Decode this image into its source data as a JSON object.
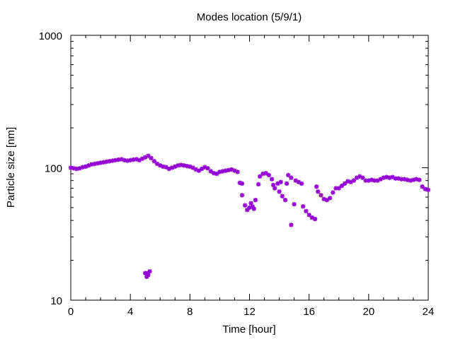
{
  "chart_data": {
    "type": "scatter",
    "title": "Modes location (5/9/1)",
    "xlabel": "Time [hour]",
    "ylabel": "Particle size [nm]",
    "xlim": [
      0,
      24
    ],
    "ylim": [
      10,
      1000
    ],
    "yscale": "log",
    "grid": false,
    "marker_color": "#9400d3",
    "marker_shape": "asterisk",
    "x_ticks": [
      0,
      4,
      8,
      12,
      16,
      20,
      24
    ],
    "x_tick_labels": [
      "0",
      "4",
      "8",
      "12",
      "16",
      "20",
      "24"
    ],
    "y_ticks": [
      10,
      100,
      1000
    ],
    "y_tick_labels": [
      "10",
      "100",
      "1000"
    ],
    "series": [
      {
        "points": [
          [
            0.0,
            100
          ],
          [
            0.2,
            99
          ],
          [
            0.4,
            98
          ],
          [
            0.6,
            99
          ],
          [
            0.8,
            101
          ],
          [
            1.0,
            102
          ],
          [
            1.2,
            104
          ],
          [
            1.4,
            106
          ],
          [
            1.6,
            107
          ],
          [
            1.8,
            108
          ],
          [
            2.0,
            109
          ],
          [
            2.2,
            110
          ],
          [
            2.4,
            111
          ],
          [
            2.6,
            112
          ],
          [
            2.8,
            113
          ],
          [
            3.0,
            114
          ],
          [
            3.2,
            115
          ],
          [
            3.4,
            116
          ],
          [
            3.6,
            114
          ],
          [
            3.8,
            113
          ],
          [
            4.0,
            114
          ],
          [
            4.2,
            115
          ],
          [
            4.4,
            116
          ],
          [
            4.6,
            114
          ],
          [
            4.8,
            117
          ],
          [
            5.0,
            120
          ],
          [
            5.2,
            123
          ],
          [
            5.4,
            118
          ],
          [
            5.6,
            112
          ],
          [
            5.8,
            107
          ],
          [
            6.0,
            104
          ],
          [
            6.2,
            102
          ],
          [
            6.4,
            101
          ],
          [
            6.6,
            98
          ],
          [
            6.8,
            100
          ],
          [
            7.0,
            102
          ],
          [
            7.2,
            104
          ],
          [
            7.4,
            105
          ],
          [
            7.6,
            104
          ],
          [
            7.8,
            103
          ],
          [
            8.0,
            102
          ],
          [
            8.2,
            100
          ],
          [
            8.4,
            97
          ],
          [
            8.6,
            95
          ],
          [
            8.8,
            98
          ],
          [
            9.0,
            101
          ],
          [
            9.2,
            99
          ],
          [
            9.4,
            94
          ],
          [
            9.6,
            91
          ],
          [
            9.8,
            90
          ],
          [
            10.0,
            93
          ],
          [
            10.2,
            94
          ],
          [
            10.4,
            95
          ],
          [
            10.6,
            96
          ],
          [
            10.8,
            97
          ],
          [
            11.0,
            95
          ],
          [
            11.2,
            93
          ],
          [
            11.35,
            77
          ],
          [
            11.5,
            76
          ],
          [
            11.5,
            62
          ],
          [
            11.7,
            52
          ],
          [
            11.85,
            48
          ],
          [
            12.0,
            50
          ],
          [
            12.1,
            54
          ],
          [
            12.2,
            51
          ],
          [
            12.3,
            49
          ],
          [
            12.4,
            57
          ],
          [
            12.6,
            75
          ],
          [
            12.7,
            86
          ],
          [
            12.9,
            90
          ],
          [
            13.1,
            91
          ],
          [
            13.3,
            88
          ],
          [
            13.5,
            82
          ],
          [
            13.6,
            74
          ],
          [
            13.7,
            70
          ],
          [
            13.9,
            76
          ],
          [
            14.1,
            78
          ],
          [
            14.0,
            66
          ],
          [
            14.2,
            61
          ],
          [
            14.4,
            57
          ],
          [
            14.5,
            76
          ],
          [
            14.6,
            88
          ],
          [
            14.8,
            84
          ],
          [
            14.8,
            37
          ],
          [
            15.0,
            53
          ],
          [
            15.1,
            80
          ],
          [
            15.3,
            78
          ],
          [
            15.5,
            76
          ],
          [
            15.6,
            51
          ],
          [
            15.8,
            47
          ],
          [
            16.0,
            44
          ],
          [
            16.2,
            42
          ],
          [
            16.4,
            41
          ],
          [
            16.5,
            72
          ],
          [
            16.6,
            66
          ],
          [
            16.8,
            62
          ],
          [
            17.0,
            58
          ],
          [
            17.2,
            57
          ],
          [
            17.4,
            59
          ],
          [
            17.6,
            65
          ],
          [
            17.8,
            70
          ],
          [
            18.0,
            70
          ],
          [
            18.2,
            73
          ],
          [
            18.4,
            76
          ],
          [
            18.6,
            79
          ],
          [
            18.8,
            78
          ],
          [
            19.0,
            80
          ],
          [
            19.2,
            84
          ],
          [
            19.4,
            86
          ],
          [
            19.6,
            84
          ],
          [
            19.8,
            80
          ],
          [
            20.0,
            80
          ],
          [
            20.2,
            81
          ],
          [
            20.4,
            80
          ],
          [
            20.6,
            80
          ],
          [
            20.8,
            82
          ],
          [
            21.0,
            84
          ],
          [
            21.2,
            85
          ],
          [
            21.4,
            84
          ],
          [
            21.6,
            85
          ],
          [
            21.8,
            83
          ],
          [
            22.0,
            83
          ],
          [
            22.2,
            82
          ],
          [
            22.4,
            82
          ],
          [
            22.6,
            81
          ],
          [
            22.8,
            80
          ],
          [
            23.0,
            81
          ],
          [
            23.2,
            82
          ],
          [
            23.4,
            81
          ],
          [
            23.6,
            72
          ],
          [
            23.8,
            69
          ],
          [
            24.0,
            68
          ],
          [
            5.0,
            16
          ],
          [
            5.1,
            15
          ],
          [
            5.2,
            15.5
          ],
          [
            5.3,
            16.5
          ],
          [
            5.15,
            16
          ]
        ]
      }
    ]
  }
}
